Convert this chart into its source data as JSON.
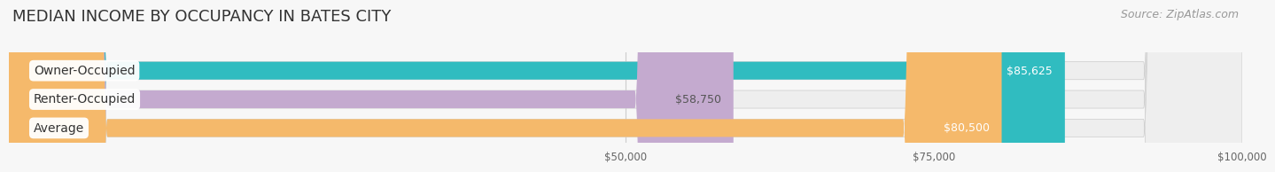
{
  "title": "MEDIAN INCOME BY OCCUPANCY IN BATES CITY",
  "source": "Source: ZipAtlas.com",
  "categories": [
    "Owner-Occupied",
    "Renter-Occupied",
    "Average"
  ],
  "values": [
    85625,
    58750,
    80500
  ],
  "labels": [
    "$85,625",
    "$58,750",
    "$80,500"
  ],
  "bar_colors": [
    "#30bcc0",
    "#c4aacf",
    "#f5b96b"
  ],
  "bar_bg_colors": [
    "#eeeeee",
    "#eeeeee",
    "#eeeeee"
  ],
  "label_in_bar_colors": [
    "#ffffff",
    "#555555",
    "#ffffff"
  ],
  "xlim": [
    0,
    100000
  ],
  "xstart": 0,
  "xticks": [
    50000,
    75000,
    100000
  ],
  "xtick_labels": [
    "$50,000",
    "$75,000",
    "$100,000"
  ],
  "background_color": "#f7f7f7",
  "title_fontsize": 13,
  "source_fontsize": 9,
  "bar_label_fontsize": 9,
  "category_label_fontsize": 10
}
